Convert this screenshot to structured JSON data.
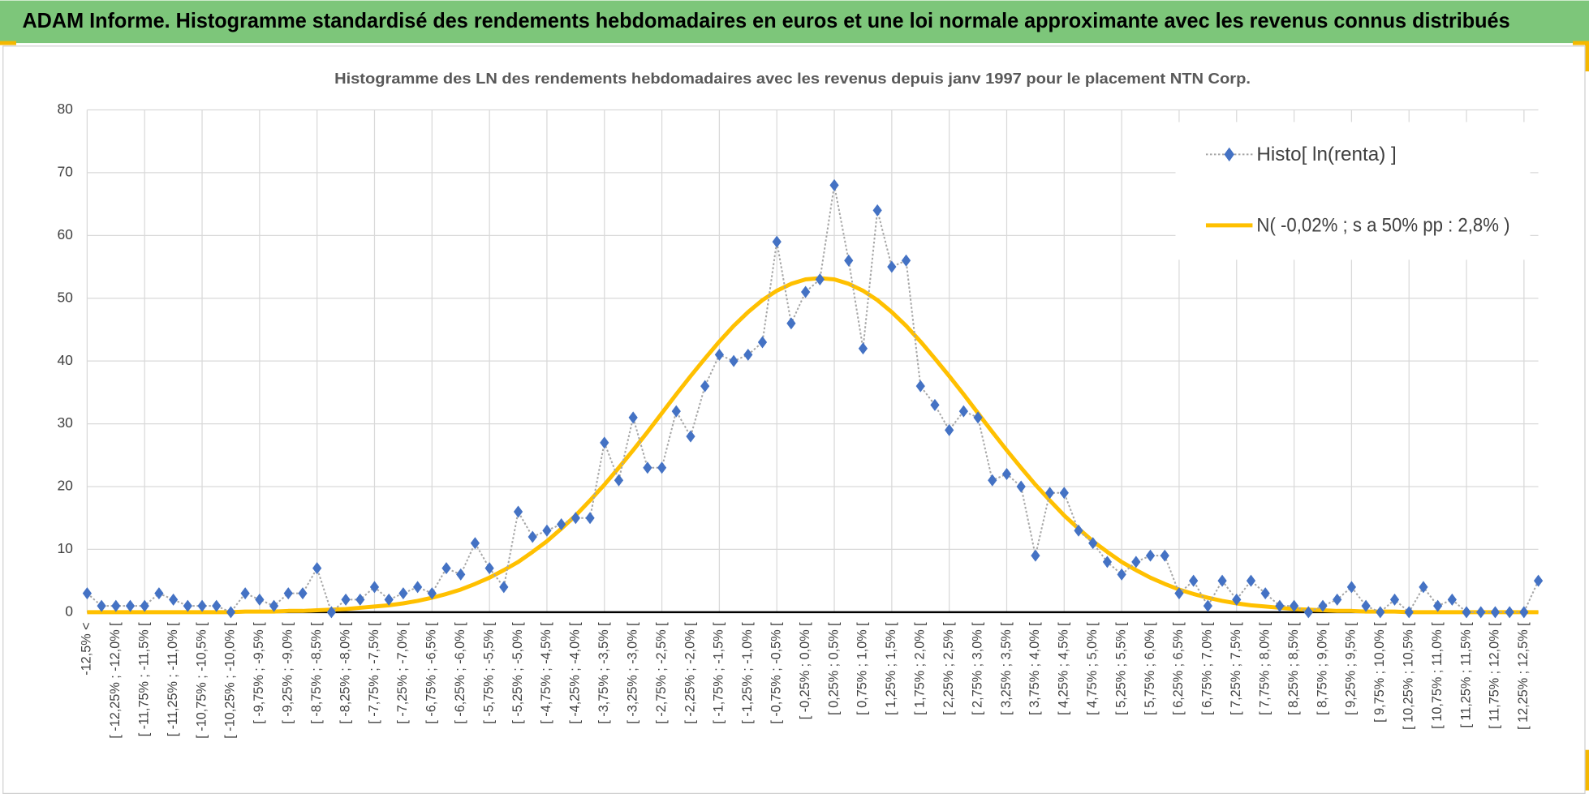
{
  "chart_data": {
    "type": "line",
    "header": "ADAM Informe. Histogramme standardisé des rendements hebdomadaires en euros et une loi normale approximante avec les revenus connus distribués",
    "title": "Histogramme  des LN des rendements  hebdomadaires avec les revenus depuis janv 1997 pour le placement NTN Corp.",
    "categories": [
      "-12,5% <",
      null,
      "[ -12,25% ; -12,0% [",
      null,
      "[ -11,75% ; -11,5% [",
      null,
      "[ -11,25% ; -11,0% [",
      null,
      "[ -10,75% ; -10,5% [",
      null,
      "[ -10,25% ; -10,0% [",
      null,
      "[ -9,75% ; -9,5% [",
      null,
      "[ -9,25% ; -9,0% [",
      null,
      "[ -8,75% ; -8,5% [",
      null,
      "[ -8,25% ; -8,0% [",
      null,
      "[ -7,75% ; -7,5% [",
      null,
      "[ -7,25% ; -7,0% [",
      null,
      "[ -6,75% ; -6,5% [",
      null,
      "[ -6,25% ; -6,0% [",
      null,
      "[ -5,75% ; -5,5% [",
      null,
      "[ -5,25% ; -5,0% [",
      null,
      "[ -4,75% ; -4,5% [",
      null,
      "[ -4,25% ; -4,0% [",
      null,
      "[ -3,75% ; -3,5% [",
      null,
      "[ -3,25% ; -3,0% [",
      null,
      "[ -2,75% ; -2,5% [",
      null,
      "[ -2,25% ; -2,0% [",
      null,
      "[ -1,75% ; -1,5% [",
      null,
      "[ -1,25% ; -1,0% [",
      null,
      "[ -0,75% ; -0,5% [",
      null,
      "[ -0,25% ; 0,0% [",
      null,
      "[ 0,25% ; 0,5% [",
      null,
      "[ 0,75% ; 1,0% [",
      null,
      "[ 1,25% ; 1,5% [",
      null,
      "[ 1,75% ; 2,0% [",
      null,
      "[ 2,25% ; 2,5% [",
      null,
      "[ 2,75% ; 3,0% [",
      null,
      "[ 3,25% ; 3,5% [",
      null,
      "[ 3,75% ; 4,0% [",
      null,
      "[ 4,25% ; 4,5% [",
      null,
      "[ 4,75% ; 5,0% [",
      null,
      "[ 5,25% ; 5,5% [",
      null,
      "[ 5,75% ; 6,0% [",
      null,
      "[ 6,25% ; 6,5% [",
      null,
      "[ 6,75% ; 7,0% [",
      null,
      "[ 7,25% ; 7,5% [",
      null,
      "[ 7,75% ; 8,0% [",
      null,
      "[ 8,25% ; 8,5% [",
      null,
      "[ 8,75% ; 9,0% [",
      null,
      "[ 9,25% ; 9,5% [",
      null,
      "[ 9,75% ; 10,0% [",
      null,
      "[ 10,25% ; 10,5% [",
      null,
      "[ 10,75% ; 11,0% [",
      null,
      "[ 11,25% ; 11,5% [",
      null,
      "[ 11,75% ; 12,0% [",
      null,
      "[ 12,25% ; 12,5% [",
      null
    ],
    "series": [
      {
        "name": "Histo[ ln(renta) ]",
        "color": "#4472c4",
        "line_color": "#a6a6a6",
        "values": [
          3,
          1,
          1,
          1,
          1,
          3,
          2,
          1,
          1,
          1,
          0,
          3,
          2,
          1,
          3,
          3,
          7,
          0,
          2,
          2,
          4,
          2,
          3,
          4,
          3,
          7,
          6,
          11,
          7,
          4,
          16,
          12,
          13,
          14,
          15,
          15,
          27,
          21,
          31,
          23,
          23,
          32,
          28,
          36,
          41,
          40,
          41,
          43,
          59,
          46,
          51,
          53,
          68,
          56,
          42,
          64,
          55,
          56,
          36,
          33,
          29,
          32,
          31,
          21,
          22,
          20,
          9,
          19,
          19,
          13,
          11,
          8,
          6,
          8,
          9,
          9,
          3,
          5,
          1,
          5,
          2,
          5,
          3,
          1,
          1,
          0,
          1,
          2,
          4,
          1,
          0,
          2,
          0,
          4,
          1,
          2,
          0,
          0,
          0,
          0,
          0,
          5
        ]
      },
      {
        "name": "N( -0,02% ; s a 50% pp : 2,8% )",
        "color": "#ffc000",
        "values": [
          0,
          0,
          0,
          0,
          0,
          0,
          0,
          0,
          0,
          0,
          0,
          0.1,
          0.1,
          0.1,
          0.2,
          0.2,
          0.3,
          0.4,
          0.5,
          0.7,
          0.9,
          1.1,
          1.4,
          1.8,
          2.3,
          2.9,
          3.6,
          4.5,
          5.5,
          6.7,
          8.0,
          9.6,
          11.3,
          13.3,
          15.4,
          17.8,
          20.3,
          23.0,
          25.8,
          28.7,
          31.7,
          34.7,
          37.6,
          40.4,
          43.1,
          45.6,
          47.8,
          49.7,
          51.2,
          52.3,
          53.0,
          53.2,
          53.0,
          52.3,
          51.2,
          49.7,
          47.8,
          45.6,
          43.1,
          40.4,
          37.6,
          34.7,
          31.7,
          28.7,
          25.8,
          23.0,
          20.3,
          17.8,
          15.4,
          13.3,
          11.3,
          9.6,
          8.0,
          6.7,
          5.5,
          4.5,
          3.6,
          2.9,
          2.3,
          1.8,
          1.4,
          1.1,
          0.9,
          0.7,
          0.5,
          0.4,
          0.3,
          0.2,
          0.2,
          0.1,
          0.1,
          0.1,
          0,
          0,
          0,
          0,
          0,
          0,
          0,
          0,
          0,
          0
        ]
      }
    ],
    "ylim": [
      0,
      80
    ],
    "yticks": [
      0,
      10,
      20,
      30,
      40,
      50,
      60,
      70,
      80
    ],
    "grid": true,
    "legend": "top-right"
  }
}
